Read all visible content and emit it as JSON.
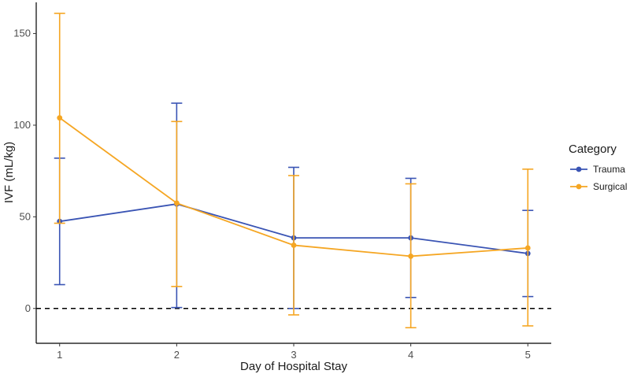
{
  "chart_data": {
    "type": "line",
    "xlabel": "Day of Hospital Stay",
    "ylabel": "IVF (mL/kg)",
    "x": [
      1,
      2,
      3,
      4,
      5
    ],
    "xlim": [
      0.8,
      5.2
    ],
    "ylim": [
      -19,
      167
    ],
    "yticks": [
      0,
      50,
      100,
      150
    ],
    "reference_line": {
      "y": 0,
      "style": "dashed",
      "color": "#000000"
    },
    "grid": false,
    "legend": {
      "title": "Category",
      "position": "right",
      "entries": [
        "Trauma",
        "Surgical"
      ]
    },
    "series": [
      {
        "name": "Trauma",
        "color": "#3a54b4",
        "values": [
          47.5,
          57,
          38.5,
          38.5,
          30
        ],
        "error_low": [
          13,
          0.5,
          0,
          6,
          6.5
        ],
        "error_high": [
          82,
          112,
          77,
          71,
          53.5
        ]
      },
      {
        "name": "Surgical",
        "color": "#f5a623",
        "values": [
          104,
          57.5,
          34.5,
          28.5,
          33
        ],
        "error_low": [
          46.5,
          12,
          -3.5,
          -10.5,
          -9.5
        ],
        "error_high": [
          161,
          102,
          72.5,
          68,
          76
        ]
      }
    ]
  }
}
